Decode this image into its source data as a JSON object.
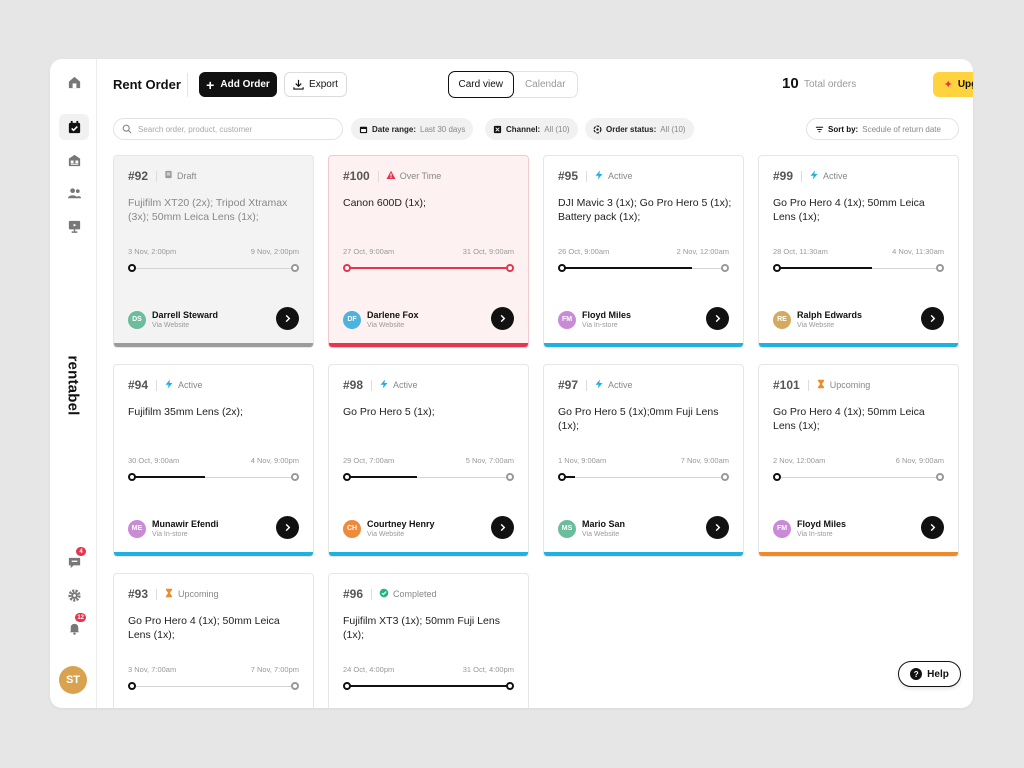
{
  "sidebar": {
    "brand": "rentabel",
    "chat_badge": "4",
    "notif_badge": "12",
    "user_initials": "ST",
    "user_color": "#d9a24e"
  },
  "header": {
    "title": "Rent Order",
    "add_label": "Add Order",
    "export_label": "Export",
    "view_card": "Card view",
    "view_calendar": "Calendar",
    "total_count": "10",
    "total_label": "Total orders",
    "upgrade_label": "Upgrade"
  },
  "filters": {
    "search_placeholder": "Search order, product, customer",
    "date_label": "Date range:",
    "date_value": "Last 30 days",
    "channel_label": "Channel:",
    "channel_value": "All (10)",
    "status_label": "Order status:",
    "status_value": "All (10)",
    "sort_label": "Sort by:",
    "sort_value": "Scedule of return date"
  },
  "status_colors": {
    "Draft": "#9b9b9b",
    "Over Time": "#e8344e",
    "Active": "#1fb1e0",
    "Upcoming": "#f08a24",
    "Completed": "#1fb57a"
  },
  "orders": [
    {
      "id": "#92",
      "status": "Draft",
      "items": "Fujifilm XT20 (2x); Tripod Xtramax (3x); 50mm Leica Lens (1x);",
      "start": "3 Nov, 2:00pm",
      "end": "9 Nov, 2:00pm",
      "progress": 0,
      "customer": "Darrell Steward",
      "initials": "DS",
      "avatar_color": "#6bbd9e",
      "via": "Via Website"
    },
    {
      "id": "#100",
      "status": "Over Time",
      "items": "Canon 600D (1x);",
      "start": "27 Oct, 9:00am",
      "end": "31 Oct, 9:00am",
      "progress": 1,
      "customer": "Darlene Fox",
      "initials": "DF",
      "avatar_color": "#4ab3e0",
      "via": "Via Website"
    },
    {
      "id": "#95",
      "status": "Active",
      "items": "DJI Mavic 3 (1x); Go Pro Hero 5 (1x); Battery pack (1x);",
      "start": "26 Oct, 9:00am",
      "end": "2 Nov, 12:00am",
      "progress": 0.8,
      "customer": "Floyd Miles",
      "initials": "FM",
      "avatar_color": "#c98bd6",
      "via": "Via In-store"
    },
    {
      "id": "#99",
      "status": "Active",
      "items": "Go Pro Hero 4 (1x); 50mm Leica Lens (1x);",
      "start": "28 Oct, 11:30am",
      "end": "4 Nov, 11:30am",
      "progress": 0.58,
      "customer": "Ralph Edwards",
      "initials": "RE",
      "avatar_color": "#d4ab5e",
      "via": "Via Website"
    },
    {
      "id": "#94",
      "status": "Active",
      "items": "Fujifilm 35mm Lens (2x);",
      "start": "30 Oct, 9:00am",
      "end": "4 Nov, 9:00pm",
      "progress": 0.45,
      "customer": "Munawir Efendi",
      "initials": "ME",
      "avatar_color": "#c98bd6",
      "via": "Via In-store"
    },
    {
      "id": "#98",
      "status": "Active",
      "items": "Go Pro Hero 5 (1x);",
      "start": "29 Oct, 7:00am",
      "end": "5 Nov, 7:00am",
      "progress": 0.43,
      "customer": "Courtney Henry",
      "initials": "CH",
      "avatar_color": "#ee8a3a",
      "via": "Via Website"
    },
    {
      "id": "#97",
      "status": "Active",
      "items": "Go Pro Hero 5 (1x);0mm Fuji Lens (1x);",
      "start": "1 Nov, 9:00am",
      "end": "7 Nov, 9:00am",
      "progress": 0.08,
      "customer": "Mario San",
      "initials": "MS",
      "avatar_color": "#6bbd9e",
      "via": "Via Website"
    },
    {
      "id": "#101",
      "status": "Upcoming",
      "items": "Go Pro Hero 4 (1x); 50mm Leica Lens (1x);",
      "start": "2 Nov, 12:00am",
      "end": "6 Nov, 9:00am",
      "progress": 0,
      "customer": "Floyd Miles",
      "initials": "FM",
      "avatar_color": "#c98bd6",
      "via": "Via In-store"
    },
    {
      "id": "#93",
      "status": "Upcoming",
      "items": "Go Pro Hero 4 (1x); 50mm Leica Lens (1x);",
      "start": "3 Nov, 7:00am",
      "end": "7 Nov, 7:00pm",
      "progress": 0,
      "customer": "",
      "initials": "",
      "avatar_color": "#ffffff",
      "via": ""
    },
    {
      "id": "#96",
      "status": "Completed",
      "items": "Fujifilm XT3 (1x); 50mm Fuji Lens (1x);",
      "start": "24 Oct, 4:00pm",
      "end": "31 Oct, 4:00pm",
      "progress": 1,
      "customer": "",
      "initials": "",
      "avatar_color": "#ffffff",
      "via": ""
    }
  ],
  "help_label": "Help"
}
